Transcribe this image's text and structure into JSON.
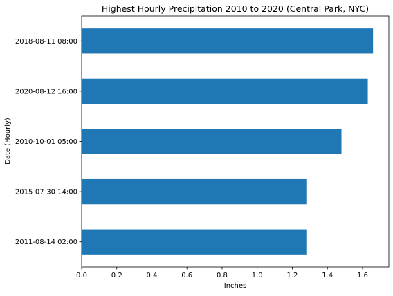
{
  "chart_data": {
    "type": "bar",
    "orientation": "horizontal",
    "title": "Highest Hourly Precipitation 2010 to 2020 (Central Park, NYC)",
    "xlabel": "Inches",
    "ylabel": "Date (Hourly)",
    "categories": [
      "2018-08-11 08:00",
      "2020-08-12 16:00",
      "2010-10-01 05:00",
      "2015-07-30 14:00",
      "2011-08-14 02:00"
    ],
    "values": [
      1.66,
      1.63,
      1.48,
      1.28,
      1.28
    ],
    "xlim": [
      0,
      1.75
    ],
    "xticks": [
      "0.0",
      "0.2",
      "0.4",
      "0.6",
      "0.8",
      "1.0",
      "1.2",
      "1.4",
      "1.6"
    ],
    "bar_color": "#1f77b4",
    "grid": false,
    "legend": "none"
  }
}
